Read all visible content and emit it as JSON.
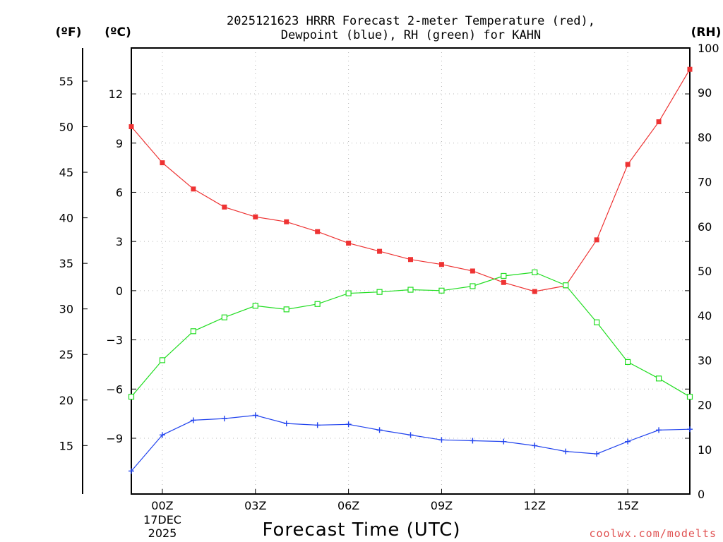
{
  "chart_data": {
    "type": "line",
    "title_lines": [
      "2025121623 HRRR Forecast 2-meter Temperature (red),",
      "Dewpoint (blue), RH (green) for KAHN"
    ],
    "xlabel": "Forecast Time (UTC)",
    "x": [
      -1,
      0,
      1,
      2,
      3,
      4,
      5,
      6,
      7,
      8,
      9,
      10,
      11,
      12,
      13,
      14,
      15,
      16,
      17
    ],
    "xlim": [
      -1,
      17
    ],
    "x_ticks": [
      {
        "x": 0,
        "label": "00Z"
      },
      {
        "x": 3,
        "label": "03Z"
      },
      {
        "x": 6,
        "label": "06Z"
      },
      {
        "x": 9,
        "label": "09Z"
      },
      {
        "x": 12,
        "label": "12Z"
      },
      {
        "x": 15,
        "label": "15Z"
      }
    ],
    "date_labels": [
      "17DEC",
      "2025"
    ],
    "axes": {
      "fahrenheit": {
        "unit_label": "(ºF)",
        "ticks": [
          15,
          20,
          25,
          30,
          35,
          40,
          45,
          50,
          55
        ]
      },
      "celsius": {
        "unit_label": "(ºC)",
        "ylim": [
          -12.4,
          14.8
        ],
        "ticks": [
          -9,
          -6,
          -3,
          0,
          3,
          6,
          9,
          12
        ]
      },
      "rh": {
        "unit_label": "(RH)",
        "ylim": [
          0,
          100
        ],
        "ticks": [
          0,
          10,
          20,
          30,
          40,
          50,
          60,
          70,
          80,
          90,
          100
        ]
      }
    },
    "series": [
      {
        "name": "Temperature",
        "axis": "celsius",
        "color": "#ee3333",
        "marker": "filled-square",
        "values": [
          10.0,
          7.8,
          6.2,
          5.1,
          4.5,
          4.2,
          3.6,
          2.9,
          2.4,
          1.9,
          1.6,
          1.2,
          0.5,
          -0.05,
          0.3,
          3.1,
          7.7,
          10.3,
          13.5
        ]
      },
      {
        "name": "Dewpoint",
        "axis": "celsius",
        "color": "#2244ee",
        "marker": "plus",
        "values": [
          -11.0,
          -8.8,
          -7.9,
          -7.8,
          -7.6,
          -8.1,
          -8.2,
          -8.15,
          -8.5,
          -8.8,
          -9.1,
          -9.15,
          -9.2,
          -9.45,
          -9.8,
          -9.95,
          -9.2,
          -8.5,
          -8.45
        ]
      },
      {
        "name": "RH",
        "axis": "rh",
        "color": "#22dd22",
        "marker": "open-square",
        "values": [
          21.8,
          30.0,
          36.5,
          39.6,
          42.2,
          41.4,
          42.6,
          45.0,
          45.3,
          45.8,
          45.6,
          46.6,
          48.9,
          49.7,
          46.8,
          38.5,
          29.6,
          25.9,
          21.8
        ]
      }
    ]
  },
  "credit": {
    "text": "coolwx.com/modelts",
    "color": "#e05050"
  }
}
